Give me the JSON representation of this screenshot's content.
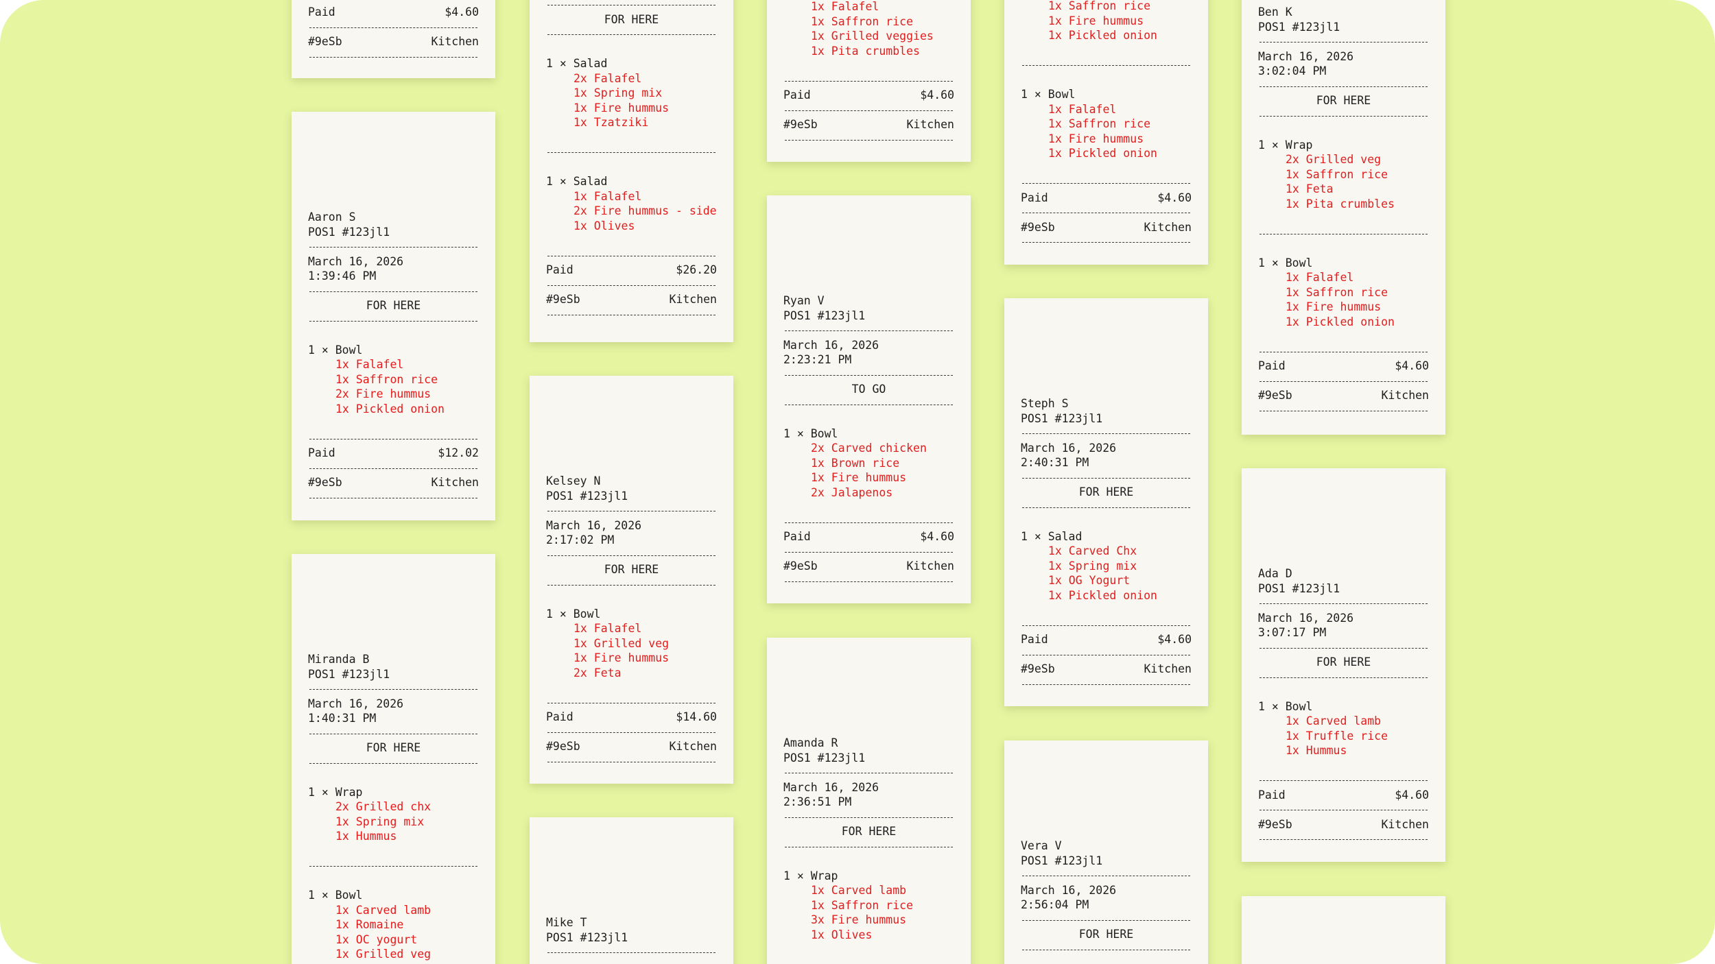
{
  "colors": {
    "background": "#e6f5a0",
    "paper": "#f8f7f2",
    "text": "#1e1e1e",
    "modifier": "#e41c1c"
  },
  "c1t1": {
    "paid_label": "Paid",
    "paid_amount": "$4.60",
    "order_id": "#9eSb",
    "station": "Kitchen"
  },
  "c1t2": {
    "name": "Aaron S",
    "pos": "POS1 #123jl1",
    "date": "March 16, 2026",
    "time": "1:39:46 PM",
    "service": "FOR HERE",
    "item1": {
      "title": "1 × Bowl",
      "mods": [
        "1x Falafel",
        "1x Saffron rice",
        "2x Fire hummus",
        "1x Pickled onion"
      ]
    },
    "paid_label": "Paid",
    "paid_amount": "$12.02",
    "order_id": "#9eSb",
    "station": "Kitchen"
  },
  "c1t3": {
    "name": "Miranda B",
    "pos": "POS1 #123jl1",
    "date": "March 16, 2026",
    "time": "1:40:31 PM",
    "service": "FOR HERE",
    "item1": {
      "title": "1 × Wrap",
      "mods": [
        "2x Grilled chx",
        "1x Spring mix",
        "1x Hummus"
      ]
    },
    "item2": {
      "title": "1 × Bowl",
      "mods": [
        "1x Carved lamb",
        "1x Romaine",
        "1x OC yogurt",
        "1x Grilled veg"
      ]
    }
  },
  "c2t1": {
    "service": "FOR HERE",
    "item1": {
      "title": "1 × Salad",
      "mods": [
        "2x Falafel",
        "1x Spring mix",
        "1x Fire hummus",
        "1x Tzatziki"
      ]
    },
    "item2": {
      "title": "1 × Salad",
      "mods": [
        "1x Falafel",
        "2x Fire hummus - side",
        "1x Olives"
      ]
    },
    "paid_label": "Paid",
    "paid_amount": "$26.20",
    "order_id": "#9eSb",
    "station": "Kitchen"
  },
  "c2t2": {
    "name": "Kelsey N",
    "pos": "POS1 #123jl1",
    "date": "March 16, 2026",
    "time": "2:17:02 PM",
    "service": "FOR HERE",
    "item1": {
      "title": "1 × Bowl",
      "mods": [
        "1x Falafel",
        "1x Grilled veg",
        "1x Fire hummus",
        "2x Feta"
      ]
    },
    "paid_label": "Paid",
    "paid_amount": "$14.60",
    "order_id": "#9eSb",
    "station": "Kitchen"
  },
  "c2t3": {
    "name": "Mike T",
    "pos": "POS1 #123jl1"
  },
  "c3t1": {
    "mods": [
      "1x Falafel",
      "1x Saffron rice",
      "1x Grilled veggies",
      "1x Pita crumbles"
    ],
    "paid_label": "Paid",
    "paid_amount": "$4.60",
    "order_id": "#9eSb",
    "station": "Kitchen"
  },
  "c3t2": {
    "name": "Ryan V",
    "pos": "POS1 #123jl1",
    "date": "March 16, 2026",
    "time": "2:23:21 PM",
    "service": "TO GO",
    "item1": {
      "title": "1 × Bowl",
      "mods": [
        "2x Carved chicken",
        "1x Brown rice",
        "1x Fire hummus",
        "2x Jalapenos"
      ]
    },
    "paid_label": "Paid",
    "paid_amount": "$4.60",
    "order_id": "#9eSb",
    "station": "Kitchen"
  },
  "c3t3": {
    "name": "Amanda R",
    "pos": "POS1 #123jl1",
    "date": "March 16, 2026",
    "time": "2:36:51 PM",
    "service": "FOR HERE",
    "item1": {
      "title": "1 × Wrap",
      "mods": [
        "1x Carved lamb",
        "1x Saffron rice",
        "3x Fire hummus",
        "1x Olives"
      ]
    }
  },
  "c4t1": {
    "mods": [
      "1x Saffron rice",
      "1x Fire hummus",
      "1x Pickled onion"
    ],
    "item2": {
      "title": "1 × Bowl",
      "mods": [
        "1x Falafel",
        "1x Saffron rice",
        "1x Fire hummus",
        "1x Pickled onion"
      ]
    },
    "paid_label": "Paid",
    "paid_amount": "$4.60",
    "order_id": "#9eSb",
    "station": "Kitchen"
  },
  "c4t2": {
    "name": "Steph S",
    "pos": "POS1 #123jl1",
    "date": "March 16, 2026",
    "time": "2:40:31 PM",
    "service": "FOR HERE",
    "item1": {
      "title": "1 × Salad",
      "mods": [
        "1x Carved Chx",
        "1x Spring mix",
        "1x OG Yogurt",
        "1x Pickled onion"
      ]
    },
    "paid_label": "Paid",
    "paid_amount": "$4.60",
    "order_id": "#9eSb",
    "station": "Kitchen"
  },
  "c4t3": {
    "name": "Vera V",
    "pos": "POS1 #123jl1",
    "date": "March 16, 2026",
    "time": "2:56:04 PM",
    "service": "FOR HERE"
  },
  "c5t1": {
    "name": "Ben K",
    "pos": "POS1 #123jl1",
    "date": "March 16, 2026",
    "time": "3:02:04 PM",
    "service": "FOR HERE",
    "item1": {
      "title": "1 × Wrap",
      "mods": [
        "2x Grilled veg",
        "1x Saffron rice",
        "1x Feta",
        "1x Pita crumbles"
      ]
    },
    "item2": {
      "title": "1 × Bowl",
      "mods": [
        "1x Falafel",
        "1x Saffron rice",
        "1x Fire hummus",
        "1x Pickled onion"
      ]
    },
    "paid_label": "Paid",
    "paid_amount": "$4.60",
    "order_id": "#9eSb",
    "station": "Kitchen"
  },
  "c5t2": {
    "name": "Ada D",
    "pos": "POS1 #123jl1",
    "date": "March 16, 2026",
    "time": "3:07:17 PM",
    "service": "FOR HERE",
    "item1": {
      "title": "1 × Bowl",
      "mods": [
        "1x Carved lamb",
        "1x Truffle rice",
        "1x Hummus"
      ]
    },
    "paid_label": "Paid",
    "paid_amount": "$4.60",
    "order_id": "#9eSb",
    "station": "Kitchen"
  }
}
